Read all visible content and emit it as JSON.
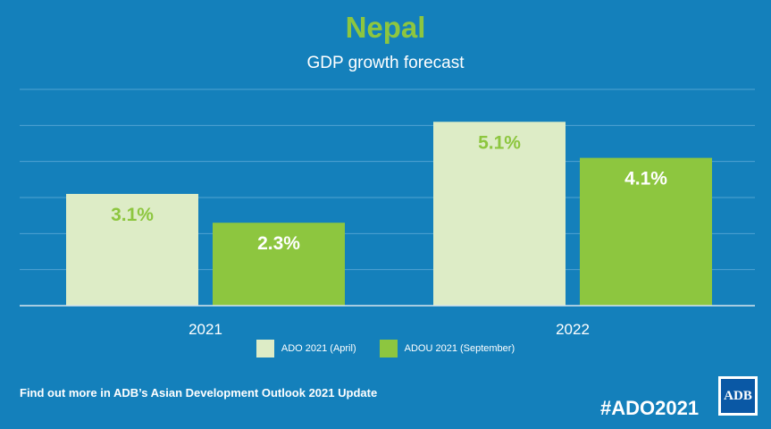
{
  "chart_data": {
    "type": "bar",
    "title": "Nepal",
    "subtitle": "GDP growth forecast",
    "categories": [
      "2021",
      "2022"
    ],
    "series": [
      {
        "name": "ADO 2021 (April)",
        "values": [
          3.1,
          5.1
        ],
        "labels": [
          "3.1%",
          "5.1%"
        ],
        "color": "#ddecc6"
      },
      {
        "name": "ADOU 2021 (September)",
        "values": [
          2.3,
          4.1
        ],
        "labels": [
          "2.3%",
          "4.1%"
        ],
        "color": "#8dc63f"
      }
    ],
    "ylim": [
      0,
      6
    ],
    "grid": true,
    "legend_position": "bottom-center"
  },
  "colors": {
    "background": "#1480bb",
    "title": "#8dc63f",
    "gridline": "#4fa3d2",
    "axis": "#d8e6ee"
  },
  "footer": {
    "text": "Find out more in ADB’s Asian Development Outlook 2021 Update",
    "hashtag": "#ADO2021",
    "logo_text": "ADB"
  }
}
